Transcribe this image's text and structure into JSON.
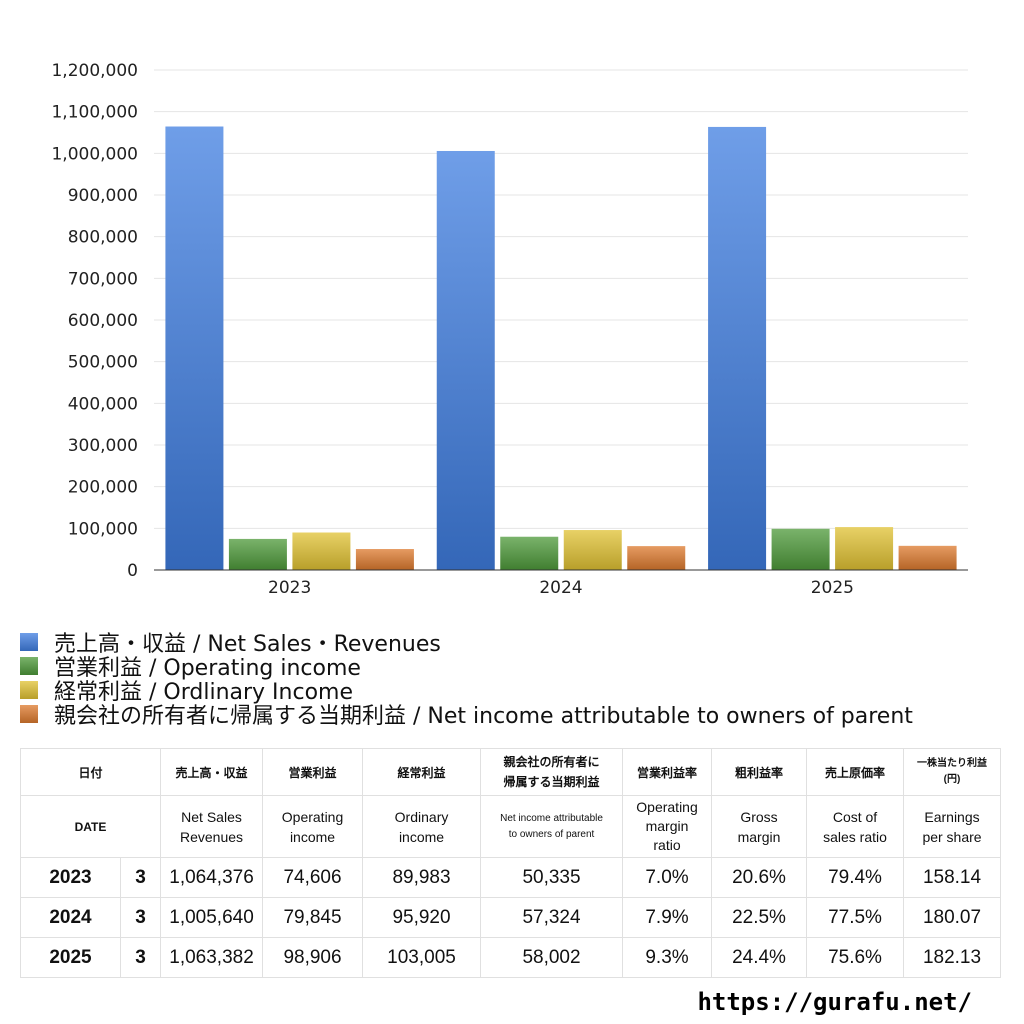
{
  "chart_data": {
    "type": "bar",
    "categories": [
      "2023",
      "2024",
      "2025"
    ],
    "series": [
      {
        "name": "売上高・収益 / Net Sales・Revenues",
        "values": [
          1064376,
          1005640,
          1063382
        ],
        "color": "#3f7de0"
      },
      {
        "name": "営業利益 / Operating income",
        "values": [
          74606,
          79845,
          98906
        ],
        "color": "#4e9a3a"
      },
      {
        "name": "経常利益 / Ordlinary Income",
        "values": [
          89983,
          95920,
          103005
        ],
        "color": "#e0c233"
      },
      {
        "name": "親会社の所有者に帰属する当期利益 / Net income attributable to owners of parent",
        "values": [
          50335,
          57324,
          58002
        ],
        "color": "#dd7a2e"
      }
    ],
    "ylim": [
      0,
      1200000
    ],
    "yticks": [
      "0",
      "100,000",
      "200,000",
      "300,000",
      "400,000",
      "500,000",
      "600,000",
      "700,000",
      "800,000",
      "900,000",
      "1,000,000",
      "1,100,000",
      "1,200,000"
    ],
    "grid": true,
    "legend_position": "bottom-left"
  },
  "table": {
    "header_ja": [
      "日付",
      "売上高・収益",
      "営業利益",
      "経常利益",
      "親会社の所有者に\n帰属する当期利益",
      "営業利益率",
      "粗利益率",
      "売上原価率",
      "一株当たり利益\n(円)"
    ],
    "header_en": [
      "DATE",
      "Net Sales\nRevenues",
      "Operating\nincome",
      "Ordinary\nincome",
      "Net income attributable\nto owners of parent",
      "Operating\nmargin\nratio",
      "Gross\nmargin",
      "Cost of\nsales ratio",
      "Earnings\nper share"
    ],
    "rows": [
      [
        "2023",
        "3",
        "1,064,376",
        "74,606",
        "89,983",
        "50,335",
        "7.0%",
        "20.6%",
        "79.4%",
        "158.14"
      ],
      [
        "2024",
        "3",
        "1,005,640",
        "79,845",
        "95,920",
        "57,324",
        "7.9%",
        "22.5%",
        "77.5%",
        "180.07"
      ],
      [
        "2025",
        "3",
        "1,063,382",
        "98,906",
        "103,005",
        "58,002",
        "9.3%",
        "24.4%",
        "75.6%",
        "182.13"
      ]
    ]
  },
  "footer": {
    "url": "https://gurafu.net/"
  }
}
